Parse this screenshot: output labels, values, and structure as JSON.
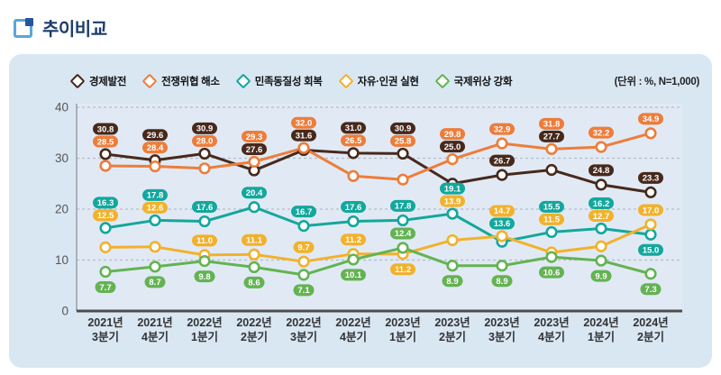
{
  "page": {
    "title": "추이비교"
  },
  "unit_label": "(단위 : %, N=1,000)",
  "chart_data": {
    "type": "line",
    "title": "추이비교",
    "unit": "(단위 : %, N=1,000)",
    "categories": [
      "2021년 3분기",
      "2021년 4분기",
      "2022년 1분기",
      "2022년 2분기",
      "2022년 3분기",
      "2022년 4분기",
      "2023년 1분기",
      "2023년 2분기",
      "2023년 3분기",
      "2023년 4분기",
      "2024년 1분기",
      "2024년 2분기"
    ],
    "series": [
      {
        "name": "경제발전",
        "color": "#47291c",
        "values": [
          30.8,
          29.6,
          30.9,
          27.6,
          31.6,
          31.0,
          30.9,
          25.0,
          26.7,
          27.7,
          24.8,
          23.3
        ]
      },
      {
        "name": "전쟁위협 해소",
        "color": "#ed7d3b",
        "values": [
          28.5,
          28.4,
          28.0,
          29.3,
          32.0,
          26.5,
          25.8,
          29.8,
          32.9,
          31.8,
          32.2,
          34.9
        ]
      },
      {
        "name": "민족동질성 회복",
        "color": "#13a79d",
        "values": [
          16.3,
          17.8,
          17.6,
          20.4,
          16.7,
          17.6,
          17.8,
          19.1,
          13.6,
          15.5,
          16.2,
          15.0
        ]
      },
      {
        "name": "자유·인권 실현",
        "color": "#f2b12d",
        "values": [
          12.5,
          12.6,
          11.0,
          11.1,
          9.7,
          11.2,
          11.2,
          13.9,
          14.7,
          11.5,
          12.7,
          17.0
        ]
      },
      {
        "name": "국제위상 강화",
        "color": "#64b353",
        "values": [
          7.7,
          8.7,
          9.8,
          8.6,
          7.1,
          10.1,
          12.4,
          8.9,
          8.9,
          10.6,
          9.9,
          7.3
        ]
      }
    ],
    "ylim": [
      0,
      40
    ],
    "yticks": [
      0,
      10,
      20,
      30,
      40
    ],
    "grid": "horizontal-dashed",
    "legend_position": "top",
    "marker": "open-circle",
    "value_labels": "all-points-pill"
  },
  "style": {
    "card_bg": "#d9e7f3",
    "plot_bg": "#e1eaf4",
    "grid_color": "#b3bcc7",
    "axis_color": "#4d4d4d",
    "left_axis_color": "#9aa4ae",
    "tick_label_color": "#555555",
    "x_label_color": "#333333",
    "title_color": "#1d3d6b"
  }
}
